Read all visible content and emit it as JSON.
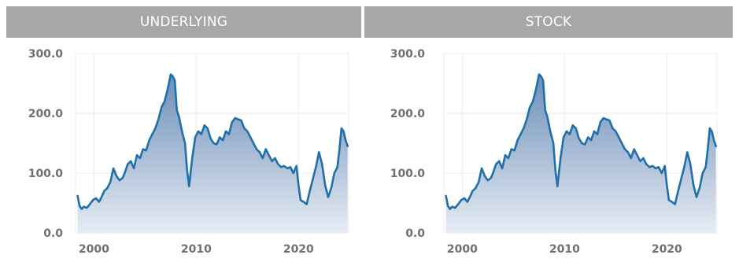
{
  "chart_data": [
    {
      "type": "area",
      "title": "UNDERLYING",
      "xlabel": "",
      "ylabel": "",
      "xlim": [
        1998.2,
        2024.9
      ],
      "ylim": [
        0,
        300
      ],
      "xticks": [
        "2000",
        "2010",
        "2020"
      ],
      "yticks": [
        "0.0",
        "100.0",
        "200.0",
        "300.0"
      ],
      "grid": true,
      "series": [
        {
          "x": [
            1998.4,
            1998.6,
            1998.8,
            1999.0,
            1999.3,
            1999.6,
            1999.9,
            2000.2,
            2000.5,
            2000.8,
            2001.0,
            2001.3,
            2001.6,
            2001.9,
            2002.2,
            2002.5,
            2002.8,
            2003.0,
            2003.3,
            2003.6,
            2003.9,
            2004.2,
            2004.5,
            2004.8,
            2005.1,
            2005.4,
            2005.7,
            2006.0,
            2006.3,
            2006.6,
            2006.9,
            2007.2,
            2007.5,
            2007.7,
            2007.9,
            2008.1,
            2008.3,
            2008.6,
            2008.9,
            2009.1,
            2009.3,
            2009.6,
            2009.9,
            2010.2,
            2010.5,
            2010.8,
            2011.1,
            2011.4,
            2011.7,
            2012.0,
            2012.3,
            2012.6,
            2012.9,
            2013.2,
            2013.5,
            2013.8,
            2014.1,
            2014.4,
            2014.7,
            2015.0,
            2015.3,
            2015.6,
            2015.9,
            2016.2,
            2016.5,
            2016.8,
            2017.1,
            2017.4,
            2017.7,
            2018.0,
            2018.3,
            2018.6,
            2018.9,
            2019.2,
            2019.5,
            2019.8,
            2020.0,
            2020.2,
            2020.5,
            2020.8,
            2021.1,
            2021.4,
            2021.7,
            2022.0,
            2022.3,
            2022.6,
            2022.9,
            2023.2,
            2023.5,
            2023.8,
            2024.0,
            2024.2,
            2024.4,
            2024.6,
            2024.8
          ],
          "values": [
            62,
            45,
            40,
            44,
            42,
            48,
            55,
            58,
            52,
            62,
            70,
            75,
            85,
            108,
            95,
            88,
            92,
            100,
            115,
            120,
            108,
            130,
            125,
            140,
            138,
            155,
            165,
            175,
            190,
            210,
            220,
            240,
            265,
            262,
            255,
            205,
            195,
            170,
            150,
            105,
            78,
            125,
            160,
            170,
            165,
            180,
            175,
            158,
            150,
            148,
            160,
            155,
            170,
            165,
            185,
            192,
            190,
            188,
            175,
            170,
            160,
            150,
            140,
            135,
            125,
            140,
            130,
            120,
            125,
            115,
            110,
            112,
            108,
            110,
            100,
            112,
            80,
            55,
            52,
            48,
            70,
            90,
            110,
            135,
            115,
            80,
            60,
            75,
            100,
            110,
            140,
            175,
            170,
            155,
            145
          ]
        }
      ]
    },
    {
      "type": "area",
      "title": "STOCK",
      "xlabel": "",
      "ylabel": "",
      "xlim": [
        1998.2,
        2024.9
      ],
      "ylim": [
        0,
        300
      ],
      "xticks": [
        "2000",
        "2010",
        "2020"
      ],
      "yticks": [
        "0.0",
        "100.0",
        "200.0",
        "300.0"
      ],
      "grid": true,
      "series": [
        {
          "x": [
            1998.4,
            1998.6,
            1998.8,
            1999.0,
            1999.3,
            1999.6,
            1999.9,
            2000.2,
            2000.5,
            2000.8,
            2001.0,
            2001.3,
            2001.6,
            2001.9,
            2002.2,
            2002.5,
            2002.8,
            2003.0,
            2003.3,
            2003.6,
            2003.9,
            2004.2,
            2004.5,
            2004.8,
            2005.1,
            2005.4,
            2005.7,
            2006.0,
            2006.3,
            2006.6,
            2006.9,
            2007.2,
            2007.5,
            2007.7,
            2007.9,
            2008.1,
            2008.3,
            2008.6,
            2008.9,
            2009.1,
            2009.3,
            2009.6,
            2009.9,
            2010.2,
            2010.5,
            2010.8,
            2011.1,
            2011.4,
            2011.7,
            2012.0,
            2012.3,
            2012.6,
            2012.9,
            2013.2,
            2013.5,
            2013.8,
            2014.1,
            2014.4,
            2014.7,
            2015.0,
            2015.3,
            2015.6,
            2015.9,
            2016.2,
            2016.5,
            2016.8,
            2017.1,
            2017.4,
            2017.7,
            2018.0,
            2018.3,
            2018.6,
            2018.9,
            2019.2,
            2019.5,
            2019.8,
            2020.0,
            2020.2,
            2020.5,
            2020.8,
            2021.1,
            2021.4,
            2021.7,
            2022.0,
            2022.3,
            2022.6,
            2022.9,
            2023.2,
            2023.5,
            2023.8,
            2024.0,
            2024.2,
            2024.4,
            2024.6,
            2024.8
          ],
          "values": [
            62,
            45,
            40,
            44,
            42,
            48,
            55,
            58,
            52,
            62,
            70,
            75,
            85,
            108,
            95,
            88,
            92,
            100,
            115,
            120,
            108,
            130,
            125,
            140,
            138,
            155,
            165,
            175,
            190,
            210,
            220,
            240,
            265,
            262,
            255,
            205,
            195,
            170,
            150,
            105,
            78,
            125,
            160,
            170,
            165,
            180,
            175,
            158,
            150,
            148,
            160,
            155,
            170,
            165,
            185,
            192,
            190,
            188,
            175,
            170,
            160,
            150,
            140,
            135,
            125,
            140,
            130,
            120,
            125,
            115,
            110,
            112,
            108,
            110,
            100,
            112,
            80,
            55,
            52,
            48,
            70,
            90,
            110,
            135,
            115,
            80,
            60,
            75,
            100,
            110,
            140,
            175,
            170,
            155,
            145
          ]
        }
      ]
    }
  ],
  "colors": {
    "header_bg": "#a7a7a7",
    "line": "#1f6fa8",
    "fill_top": "#6b8db8",
    "fill_bottom": "#e6ecf4",
    "grid": "#ececec",
    "tick_text": "#707070"
  }
}
